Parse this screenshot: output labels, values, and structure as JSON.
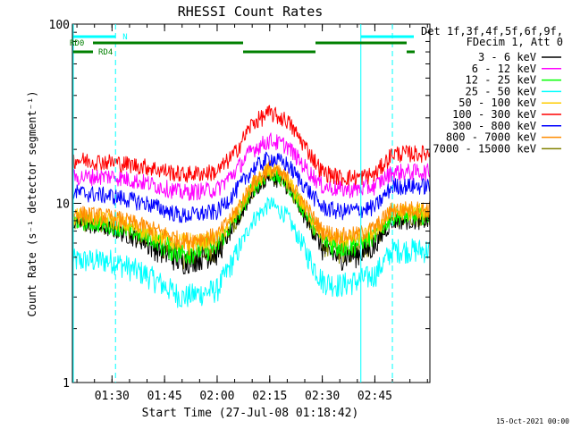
{
  "chart_data": {
    "type": "line",
    "title": "RHESSI Count Rates",
    "xlabel": "Start Time (27-Jul-08 01:18:42)",
    "ylabel": "Count Rate (s⁻¹ detector segment⁻¹)",
    "yscale": "log",
    "ylim": [
      1,
      100
    ],
    "xlim_minutes_after_start": [
      0,
      102
    ],
    "x_tick_labels": [
      "01:30",
      "01:45",
      "02:00",
      "02:15",
      "02:30",
      "02:45"
    ],
    "y_tick_labels": [
      "1",
      "10",
      "100"
    ],
    "grid": false,
    "legend_position": "right",
    "legend_header": [
      "Det 1f,3f,4f,5f,6f,9f,",
      "FDecim 1, Att 0"
    ],
    "footer_date": "15-Oct-2021 00:00",
    "series": [
      {
        "name": "3 - 6 keV",
        "color": "#000000",
        "x": [
          "01:20",
          "01:30",
          "01:40",
          "01:50",
          "02:00",
          "02:05",
          "02:10",
          "02:15",
          "02:20",
          "02:25",
          "02:30",
          "02:35",
          "02:40",
          "02:45",
          "02:50"
        ],
        "values": [
          7.8,
          7.2,
          6.0,
          4.7,
          5.3,
          7.5,
          11.5,
          14.5,
          12.5,
          8.5,
          5.6,
          5.0,
          5.2,
          5.8,
          8.0
        ]
      },
      {
        "name": "6 - 12 keV",
        "color": "#ff00ff",
        "x": [
          "01:20",
          "01:30",
          "01:40",
          "01:50",
          "02:00",
          "02:05",
          "02:10",
          "02:15",
          "02:20",
          "02:25",
          "02:30",
          "02:35",
          "02:40",
          "02:45",
          "02:50"
        ],
        "values": [
          14.0,
          14.2,
          13.0,
          11.5,
          12.0,
          15.0,
          20.0,
          22.5,
          21.0,
          16.0,
          12.5,
          12.0,
          12.0,
          12.5,
          15.0
        ]
      },
      {
        "name": "12 - 25 keV",
        "color": "#00ff00",
        "x": [
          "01:20",
          "01:30",
          "01:40",
          "01:50",
          "02:00",
          "02:05",
          "02:10",
          "02:15",
          "02:20",
          "02:25",
          "02:30",
          "02:35",
          "02:40",
          "02:45",
          "02:50"
        ],
        "values": [
          8.0,
          7.5,
          6.5,
          5.3,
          5.8,
          8.0,
          12.0,
          15.0,
          13.0,
          9.0,
          6.2,
          5.8,
          6.0,
          6.5,
          8.5
        ]
      },
      {
        "name": "25 - 50 keV",
        "color": "#00ffff",
        "x": [
          "01:20",
          "01:30",
          "01:40",
          "01:50",
          "02:00",
          "02:05",
          "02:10",
          "02:15",
          "02:20",
          "02:25",
          "02:30",
          "02:35",
          "02:40",
          "02:45",
          "02:50"
        ],
        "values": [
          4.8,
          4.8,
          4.0,
          3.0,
          3.3,
          5.0,
          8.0,
          10.0,
          8.5,
          5.5,
          3.7,
          3.5,
          3.7,
          4.0,
          5.5
        ]
      },
      {
        "name": "50 - 100 keV",
        "color": "#ffcc00",
        "x": [
          "01:20",
          "01:30",
          "01:40",
          "01:50",
          "02:00",
          "02:05",
          "02:10",
          "02:15",
          "02:20",
          "02:25",
          "02:30",
          "02:35",
          "02:40",
          "02:45",
          "02:50"
        ],
        "values": [
          8.5,
          8.0,
          7.0,
          5.9,
          6.3,
          8.5,
          12.5,
          15.5,
          13.5,
          9.5,
          6.7,
          6.3,
          6.4,
          7.0,
          9.0
        ]
      },
      {
        "name": "100 - 300 keV",
        "color": "#ff0000",
        "x": [
          "01:20",
          "01:30",
          "01:40",
          "01:50",
          "02:00",
          "02:05",
          "02:10",
          "02:15",
          "02:20",
          "02:25",
          "02:30",
          "02:35",
          "02:40",
          "02:45",
          "02:50"
        ],
        "values": [
          17.5,
          17.0,
          16.0,
          14.5,
          15.0,
          19.0,
          28.0,
          32.0,
          29.0,
          21.0,
          15.0,
          14.0,
          14.0,
          14.5,
          19.0
        ]
      },
      {
        "name": "300 - 800 keV",
        "color": "#0000ff",
        "x": [
          "01:20",
          "01:30",
          "01:40",
          "01:50",
          "02:00",
          "02:05",
          "02:10",
          "02:15",
          "02:20",
          "02:25",
          "02:30",
          "02:35",
          "02:40",
          "02:45",
          "02:50"
        ],
        "values": [
          11.5,
          11.0,
          10.0,
          8.5,
          9.0,
          11.5,
          15.5,
          18.0,
          16.5,
          12.5,
          9.5,
          9.0,
          9.2,
          9.5,
          12.5
        ]
      },
      {
        "name": "800 - 7000 keV",
        "color": "#ff8c00",
        "x": [
          "01:20",
          "01:30",
          "01:40",
          "01:50",
          "02:00",
          "02:05",
          "02:10",
          "02:15",
          "02:20",
          "02:25",
          "02:30",
          "02:35",
          "02:40",
          "02:45",
          "02:50"
        ],
        "values": [
          8.8,
          8.4,
          7.4,
          6.2,
          6.6,
          8.8,
          12.8,
          15.8,
          13.8,
          9.8,
          7.0,
          6.6,
          6.7,
          7.3,
          9.3
        ]
      },
      {
        "name": "7000 - 15000 keV",
        "color": "#808000",
        "x": [
          "01:20",
          "01:30",
          "01:40",
          "01:50",
          "02:00",
          "02:05",
          "02:10",
          "02:15",
          "02:20",
          "02:25",
          "02:30",
          "02:35",
          "02:40",
          "02:45",
          "02:50"
        ],
        "values": [
          7.9,
          7.4,
          6.3,
          5.1,
          5.6,
          7.8,
          11.8,
          14.8,
          12.8,
          8.8,
          5.9,
          5.4,
          5.6,
          6.2,
          8.3
        ]
      }
    ],
    "annotations": {
      "attenuator_bar_label": "N",
      "state_labels": [
        "RD0",
        "RD4"
      ],
      "vertical_markers_time": [
        "01:31",
        "02:41",
        "02:50"
      ]
    }
  }
}
